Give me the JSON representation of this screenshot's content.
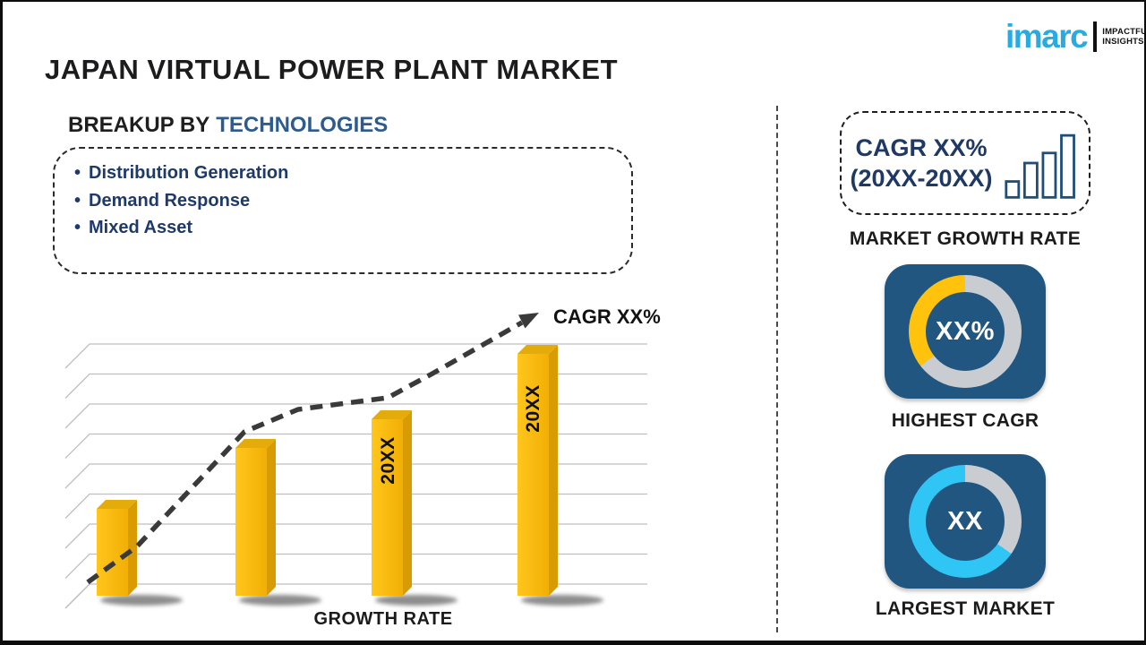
{
  "page_title": "JAPAN VIRTUAL POWER PLANT MARKET",
  "logo": {
    "brand": "imarc",
    "tagline1": "IMPACTFUL",
    "tagline2": "INSIGHTS",
    "brand_color": "#29ABE2"
  },
  "breakup": {
    "heading_prefix": "BREAKUP BY",
    "heading_highlight": "TECHNOLOGIES",
    "items": [
      "Distribution Generation",
      "Demand Response",
      "Mixed Asset"
    ]
  },
  "chart_data": {
    "type": "bar",
    "categories": [
      "",
      "",
      "20XX",
      "20XX"
    ],
    "values": [
      36,
      61,
      73,
      100
    ],
    "values_note": "relative bar heights estimated from pixels, tallest bar = 100 (no numeric axis shown)",
    "title": "",
    "xlabel": "GROWTH RATE",
    "ylabel": "",
    "ylim": [
      0,
      100
    ],
    "grid": "horizontal 3D-perspective gridlines, no tick values",
    "legend": "none",
    "bar_color": "#F7B90E",
    "trend": {
      "label": "CAGR XX%",
      "style": "dashed black arrow rising left-to-right"
    }
  },
  "sidebar": {
    "growth_box": {
      "line1": "CAGR XX%",
      "line2": "(20XX-20XX)"
    },
    "growth_caption": "MARKET GROWTH RATE",
    "highest_cagr": {
      "value": "XX%",
      "caption": "HIGHEST CAGR",
      "ring_color": "#FFC20D",
      "ring_track_color": "#C9CDD2",
      "ring_fill_deg": 128
    },
    "largest_market": {
      "value": "XX",
      "caption": "LARGEST MARKET",
      "ring_color": "#2FC5F5",
      "ring_track_color": "#C9CDD2",
      "ring_fill_deg": 235
    }
  },
  "colors": {
    "card_navy": "#215680",
    "heading_blue": "#2D5B8E",
    "bullet_navy": "#1F3A68",
    "cagr_text_navy": "#1F3864"
  }
}
